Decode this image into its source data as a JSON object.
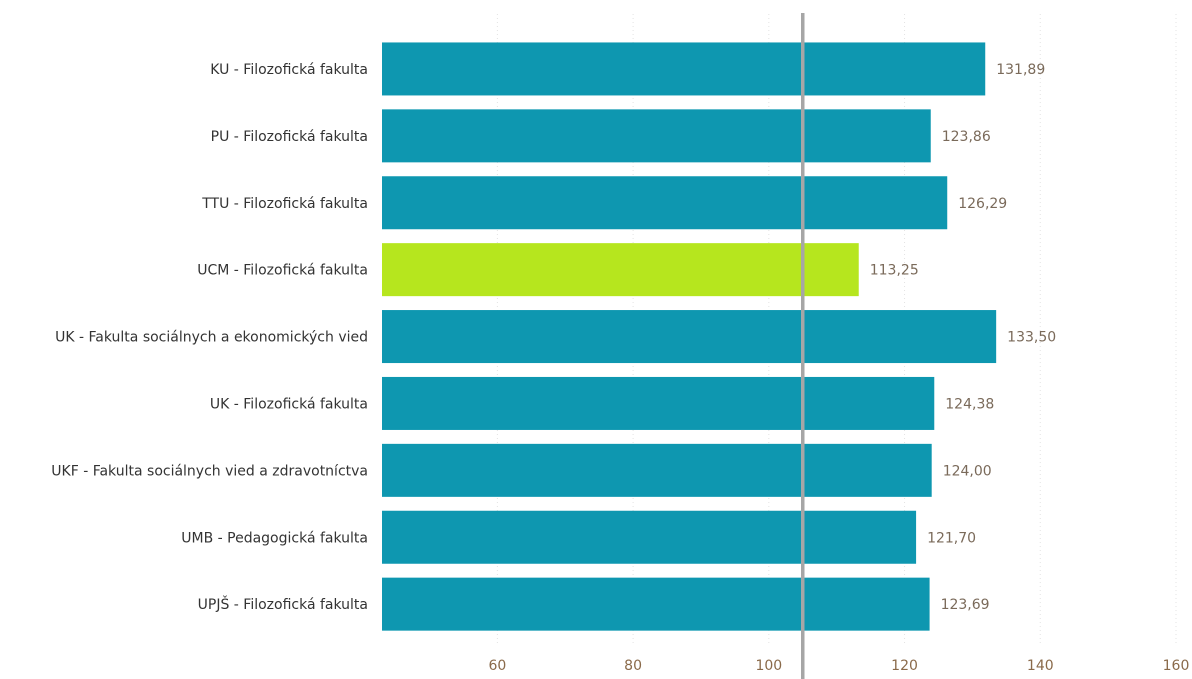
{
  "chart_data": {
    "type": "bar",
    "orientation": "horizontal",
    "categories": [
      "KU - Filozofická fakulta",
      "PU - Filozofická fakulta",
      "TTU - Filozofická fakulta",
      "UCM - Filozofická fakulta",
      "UK - Fakulta sociálnych a ekonomických vied",
      "UK - Filozofická fakulta",
      "UKF - Fakulta sociálnych vied a zdravotníctva",
      "UMB - Pedagogická fakulta",
      "UPJŠ - Filozofická fakulta"
    ],
    "values": [
      131.89,
      123.86,
      126.29,
      113.25,
      133.5,
      124.38,
      124.0,
      121.7,
      123.69
    ],
    "value_labels": [
      "131,89",
      "123,86",
      "126,29",
      "113,25",
      "133,50",
      "124,38",
      "124,00",
      "121,70",
      "123,69"
    ],
    "highlight_index": 3,
    "reference_value": 105,
    "xlim": [
      43,
      160
    ],
    "xticks": [
      60,
      80,
      100,
      120,
      140,
      160
    ],
    "grid": true,
    "title": "",
    "xlabel": "",
    "ylabel": ""
  },
  "colors": {
    "bar": "#0e97b0",
    "highlight": "#b6e61e",
    "reference_line": "#a6a6a6",
    "value_label": "#7a6a5a",
    "tick_label": "#8a6a4a",
    "category_label": "#333333"
  }
}
